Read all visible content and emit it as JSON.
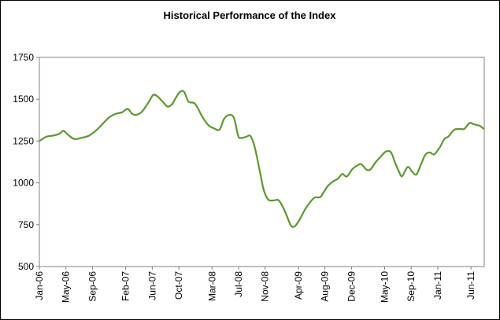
{
  "chart_data": {
    "type": "line",
    "title": "Historical Performance of the Index",
    "xlabel": "",
    "ylabel": "",
    "ylim": [
      500,
      1750
    ],
    "yticks": [
      500,
      750,
      1000,
      1250,
      1500,
      1750
    ],
    "xlim": [
      "2006-01",
      "2011-08"
    ],
    "xticks": [
      {
        "label": "Jan-06",
        "date": "2006-01"
      },
      {
        "label": "May-06",
        "date": "2006-05"
      },
      {
        "label": "Sep-06",
        "date": "2006-09"
      },
      {
        "label": "Feb-07",
        "date": "2007-02"
      },
      {
        "label": "Jun-07",
        "date": "2007-06"
      },
      {
        "label": "Oct-07",
        "date": "2007-10"
      },
      {
        "label": "Mar-08",
        "date": "2008-03"
      },
      {
        "label": "Jul-08",
        "date": "2008-07"
      },
      {
        "label": "Nov-08",
        "date": "2008-11"
      },
      {
        "label": "Apr-09",
        "date": "2009-04"
      },
      {
        "label": "Aug-09",
        "date": "2009-08"
      },
      {
        "label": "Dec-09",
        "date": "2009-12"
      },
      {
        "label": "May-10",
        "date": "2010-05"
      },
      {
        "label": "Sep-10",
        "date": "2010-09"
      },
      {
        "label": "Jan-11",
        "date": "2011-01"
      },
      {
        "label": "Jun-11",
        "date": "2011-06"
      }
    ],
    "grid": false,
    "legend": "none",
    "line_color": "#5a9a2a",
    "series": [
      {
        "x": [
          "2006-01-01",
          "2006-02-01",
          "2006-03-01",
          "2006-04-01",
          "2006-04-20",
          "2006-05-10",
          "2006-06-10",
          "2006-07-15",
          "2006-08-15",
          "2006-09-15",
          "2006-10-15",
          "2006-11-15",
          "2006-12-15",
          "2007-01-15",
          "2007-02-10",
          "2007-03-01",
          "2007-03-20",
          "2007-04-15",
          "2007-05-15",
          "2007-06-05",
          "2007-06-25",
          "2007-07-20",
          "2007-08-10",
          "2007-08-30",
          "2007-09-15",
          "2007-10-05",
          "2007-10-25",
          "2007-11-15",
          "2007-12-15",
          "2008-01-20",
          "2008-02-15",
          "2008-03-10",
          "2008-04-05",
          "2008-04-25",
          "2008-05-15",
          "2008-06-10",
          "2008-06-30",
          "2008-07-15",
          "2008-08-05",
          "2008-08-25",
          "2008-09-15",
          "2008-10-10",
          "2008-10-25",
          "2008-11-15",
          "2008-12-10",
          "2009-01-01",
          "2009-01-20",
          "2009-02-10",
          "2009-02-28",
          "2009-03-15",
          "2009-04-05",
          "2009-05-01",
          "2009-05-25",
          "2009-06-15",
          "2009-07-10",
          "2009-07-25",
          "2009-08-15",
          "2009-09-10",
          "2009-09-30",
          "2009-10-20",
          "2009-11-10",
          "2009-12-05",
          "2009-12-25",
          "2010-01-15",
          "2010-02-10",
          "2010-02-28",
          "2010-03-20",
          "2010-04-10",
          "2010-05-01",
          "2010-05-15",
          "2010-06-01",
          "2010-06-20",
          "2010-07-05",
          "2010-07-20",
          "2010-08-15",
          "2010-09-05",
          "2010-09-25",
          "2010-10-15",
          "2010-11-05",
          "2010-11-25",
          "2010-12-15",
          "2011-01-10",
          "2011-02-01",
          "2011-02-20",
          "2011-03-15",
          "2011-04-10",
          "2011-05-01",
          "2011-05-25",
          "2011-06-15",
          "2011-07-10",
          "2011-07-30"
        ],
        "values": [
          1250,
          1275,
          1282,
          1293,
          1311,
          1288,
          1262,
          1270,
          1282,
          1310,
          1350,
          1390,
          1412,
          1422,
          1442,
          1412,
          1407,
          1426,
          1482,
          1525,
          1517,
          1483,
          1456,
          1469,
          1502,
          1542,
          1545,
          1486,
          1472,
          1390,
          1345,
          1326,
          1318,
          1380,
          1405,
          1390,
          1280,
          1269,
          1275,
          1280,
          1210,
          1050,
          958,
          900,
          895,
          897,
          860,
          800,
          745,
          740,
          776,
          840,
          885,
          912,
          915,
          942,
          982,
          1010,
          1025,
          1053,
          1038,
          1082,
          1102,
          1112,
          1078,
          1082,
          1122,
          1152,
          1182,
          1190,
          1180,
          1115,
          1070,
          1040,
          1095,
          1068,
          1050,
          1110,
          1168,
          1182,
          1170,
          1212,
          1262,
          1278,
          1317,
          1322,
          1323,
          1358,
          1350,
          1341,
          1322
        ]
      }
    ]
  }
}
